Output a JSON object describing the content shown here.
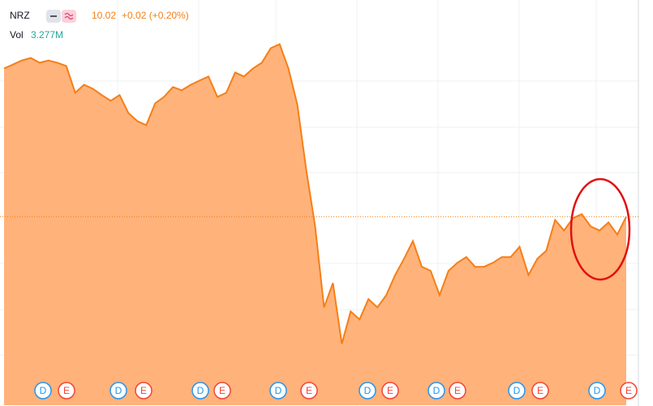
{
  "chart_data": {
    "type": "area",
    "symbol": "NRZ",
    "price": "10.02",
    "change": "+0.02 (+0.20%)",
    "volume_label": "Vol",
    "volume": "3.277M",
    "color": "#f57f17",
    "fill": "#ffb27a",
    "ylim": [
      2.5,
      18.5
    ],
    "values": [
      15.93,
      16.09,
      16.25,
      16.35,
      16.16,
      16.25,
      16.16,
      16.03,
      14.96,
      15.28,
      15.12,
      14.87,
      14.64,
      14.87,
      14.15,
      13.83,
      13.67,
      14.54,
      14.8,
      15.19,
      15.06,
      15.28,
      15.45,
      15.61,
      14.8,
      14.96,
      15.77,
      15.61,
      15.93,
      16.16,
      16.74,
      16.9,
      15.93,
      14.48,
      11.89,
      9.63,
      6.4,
      7.37,
      4.95,
      6.24,
      5.92,
      6.73,
      6.4,
      6.89,
      7.69,
      8.34,
      9.05,
      8.02,
      7.86,
      6.89,
      7.86,
      8.18,
      8.41,
      8.02,
      8.02,
      8.18,
      8.41,
      8.41,
      8.82,
      7.69,
      8.34,
      8.66,
      9.89,
      9.47,
      9.96,
      10.12,
      9.63,
      9.47,
      9.79,
      9.31,
      10.02
    ],
    "events": [
      "D",
      "E",
      "D",
      "E",
      "D",
      "E",
      "D",
      "E",
      "D",
      "E",
      "D",
      "E",
      "D",
      "E",
      "D",
      "E"
    ]
  }
}
